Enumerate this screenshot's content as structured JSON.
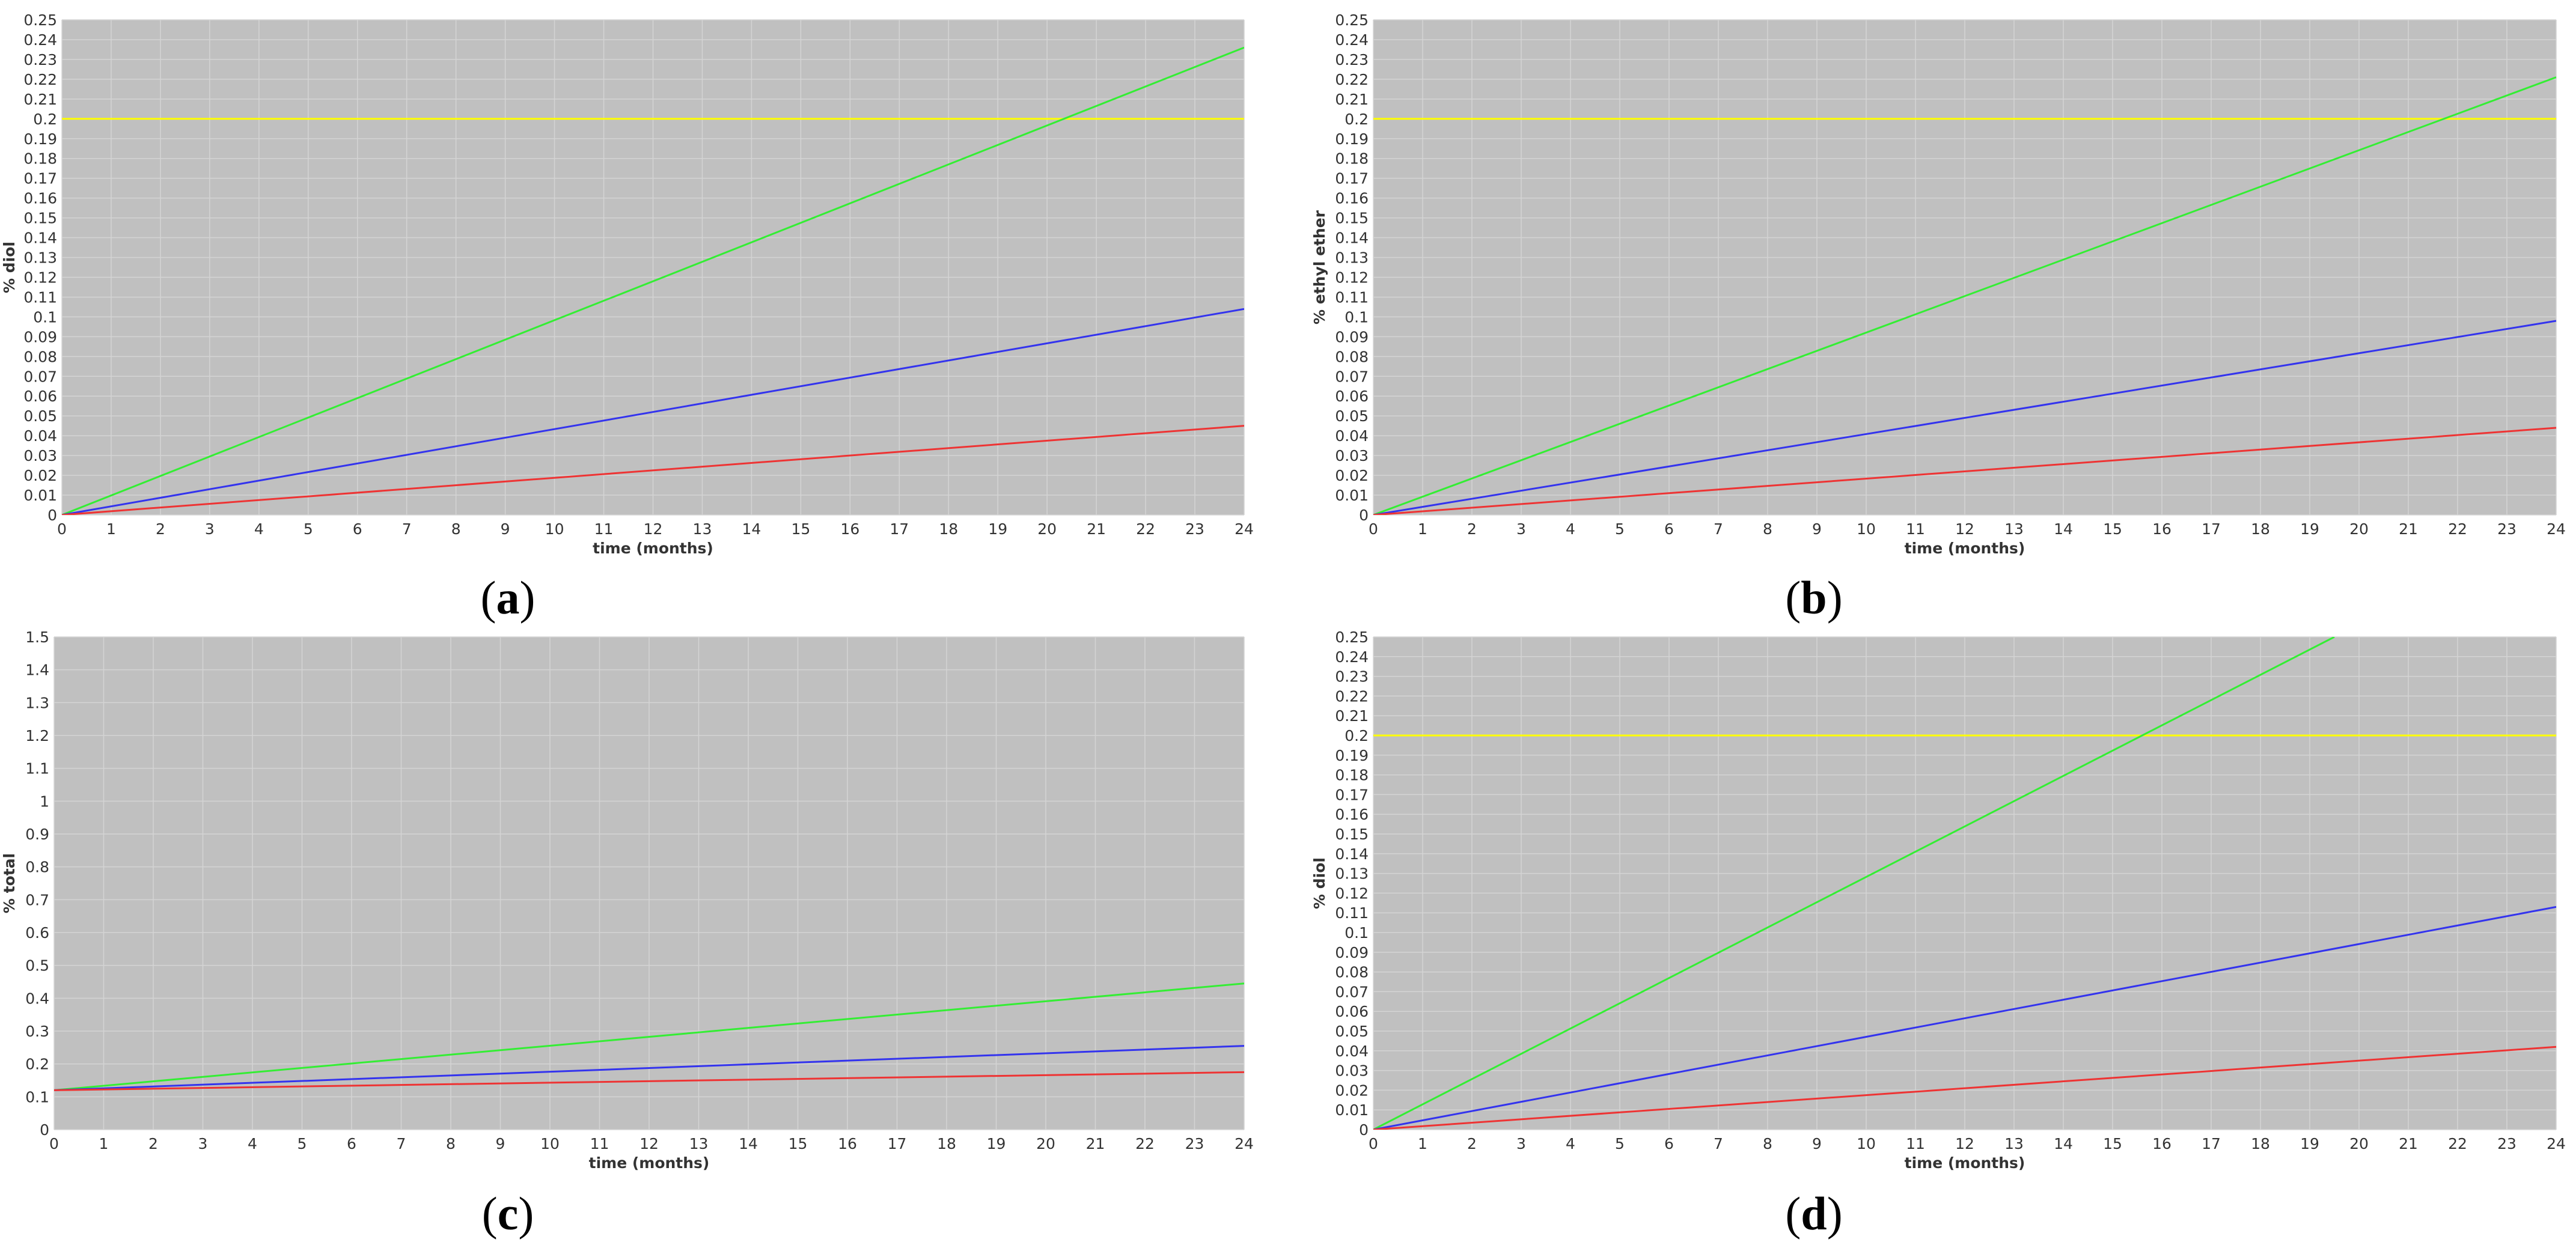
{
  "colors": {
    "plot_background": "#c0c0c0",
    "gridline": "#d4d4d4",
    "reference_line": "#ffff00",
    "green_series": "#33ee33",
    "blue_series": "#3333ee",
    "red_series": "#ee3333"
  },
  "chart_data": [
    {
      "type": "line",
      "panel": "a",
      "xlabel": "time (months)",
      "ylabel": "% diol",
      "xlim": [
        0,
        24
      ],
      "ylim": [
        0,
        0.25
      ],
      "xticks": [
        0,
        1,
        2,
        3,
        4,
        5,
        6,
        7,
        8,
        9,
        10,
        11,
        12,
        13,
        14,
        15,
        16,
        17,
        18,
        19,
        20,
        21,
        22,
        23,
        24
      ],
      "yticks": [
        0,
        0.01,
        0.02,
        0.03,
        0.04,
        0.05,
        0.06,
        0.07,
        0.08,
        0.09,
        0.1,
        0.11,
        0.12,
        0.13,
        0.14,
        0.15,
        0.16,
        0.17,
        0.18,
        0.19,
        0.2,
        0.21,
        0.22,
        0.23,
        0.24,
        0.25
      ],
      "grid": true,
      "hlines": [
        0.2
      ],
      "series": [
        {
          "color": "#33ee33",
          "x": [
            0,
            24
          ],
          "y": [
            0,
            0.236
          ]
        },
        {
          "color": "#3333ee",
          "x": [
            0,
            24
          ],
          "y": [
            0,
            0.104
          ]
        },
        {
          "color": "#ee3333",
          "x": [
            0,
            24
          ],
          "y": [
            0,
            0.045
          ]
        }
      ]
    },
    {
      "type": "line",
      "panel": "b",
      "xlabel": "time (months)",
      "ylabel": "% ethyl ether",
      "xlim": [
        0,
        24
      ],
      "ylim": [
        0,
        0.25
      ],
      "xticks": [
        0,
        1,
        2,
        3,
        4,
        5,
        6,
        7,
        8,
        9,
        10,
        11,
        12,
        13,
        14,
        15,
        16,
        17,
        18,
        19,
        20,
        21,
        22,
        23,
        24
      ],
      "yticks": [
        0,
        0.01,
        0.02,
        0.03,
        0.04,
        0.05,
        0.06,
        0.07,
        0.08,
        0.09,
        0.1,
        0.11,
        0.12,
        0.13,
        0.14,
        0.15,
        0.16,
        0.17,
        0.18,
        0.19,
        0.2,
        0.21,
        0.22,
        0.23,
        0.24,
        0.25
      ],
      "grid": true,
      "hlines": [
        0.2
      ],
      "series": [
        {
          "color": "#33ee33",
          "x": [
            0,
            24
          ],
          "y": [
            0,
            0.221
          ]
        },
        {
          "color": "#3333ee",
          "x": [
            0,
            24
          ],
          "y": [
            0,
            0.098
          ]
        },
        {
          "color": "#ee3333",
          "x": [
            0,
            24
          ],
          "y": [
            0,
            0.044
          ]
        }
      ]
    },
    {
      "type": "line",
      "panel": "c",
      "xlabel": "time (months)",
      "ylabel": "% total",
      "xlim": [
        0,
        24
      ],
      "ylim": [
        0,
        1.5
      ],
      "xticks": [
        0,
        1,
        2,
        3,
        4,
        5,
        6,
        7,
        8,
        9,
        10,
        11,
        12,
        13,
        14,
        15,
        16,
        17,
        18,
        19,
        20,
        21,
        22,
        23,
        24
      ],
      "yticks": [
        0,
        0.1,
        0.2,
        0.3,
        0.4,
        0.5,
        0.6,
        0.7,
        0.8,
        0.9,
        1,
        1.1,
        1.2,
        1.3,
        1.4,
        1.5
      ],
      "grid": true,
      "hlines": [],
      "series": [
        {
          "color": "#33ee33",
          "x": [
            0,
            24
          ],
          "y": [
            0.12,
            0.445
          ]
        },
        {
          "color": "#3333ee",
          "x": [
            0,
            24
          ],
          "y": [
            0.12,
            0.255
          ]
        },
        {
          "color": "#ee3333",
          "x": [
            0,
            24
          ],
          "y": [
            0.12,
            0.175
          ]
        }
      ]
    },
    {
      "type": "line",
      "panel": "d",
      "xlabel": "time (months)",
      "ylabel": "% diol",
      "xlim": [
        0,
        24
      ],
      "ylim": [
        0,
        0.25
      ],
      "xticks": [
        0,
        1,
        2,
        3,
        4,
        5,
        6,
        7,
        8,
        9,
        10,
        11,
        12,
        13,
        14,
        15,
        16,
        17,
        18,
        19,
        20,
        21,
        22,
        23,
        24
      ],
      "yticks": [
        0,
        0.01,
        0.02,
        0.03,
        0.04,
        0.05,
        0.06,
        0.07,
        0.08,
        0.09,
        0.1,
        0.11,
        0.12,
        0.13,
        0.14,
        0.15,
        0.16,
        0.17,
        0.18,
        0.19,
        0.2,
        0.21,
        0.22,
        0.23,
        0.24,
        0.25
      ],
      "grid": true,
      "hlines": [
        0.2
      ],
      "series": [
        {
          "color": "#33ee33",
          "x": [
            0,
            19.5
          ],
          "y": [
            0,
            0.25
          ]
        },
        {
          "color": "#3333ee",
          "x": [
            0,
            24
          ],
          "y": [
            0,
            0.113
          ]
        },
        {
          "color": "#ee3333",
          "x": [
            0,
            24
          ],
          "y": [
            0,
            0.042
          ]
        }
      ]
    }
  ],
  "captions": [
    "a",
    "b",
    "c",
    "d"
  ]
}
